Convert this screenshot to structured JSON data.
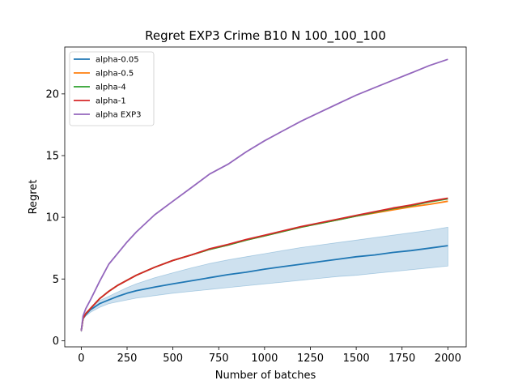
{
  "chart_data": {
    "type": "line",
    "title": "Regret EXP3 Crime B10 N 100_100_100",
    "xlabel": "Number of batches",
    "ylabel": "Regret",
    "xlim": [
      -90,
      2100
    ],
    "ylim": [
      -0.5,
      23.8
    ],
    "xticks": [
      0,
      250,
      500,
      750,
      1000,
      1250,
      1500,
      1750,
      2000
    ],
    "yticks": [
      0,
      5,
      10,
      15,
      20
    ],
    "grid": false,
    "legend_position": "top-left",
    "x": [
      0,
      10,
      25,
      50,
      100,
      150,
      200,
      250,
      300,
      400,
      500,
      600,
      700,
      800,
      900,
      1000,
      1100,
      1200,
      1300,
      1400,
      1500,
      1600,
      1700,
      1800,
      1900,
      2000
    ],
    "series": [
      {
        "name": "alpha-0.05",
        "color": "#1f77b4",
        "values": [
          0.8,
          1.8,
          2.1,
          2.5,
          3.0,
          3.3,
          3.6,
          3.85,
          4.05,
          4.35,
          4.6,
          4.85,
          5.1,
          5.35,
          5.55,
          5.8,
          6.0,
          6.2,
          6.4,
          6.6,
          6.8,
          6.95,
          7.15,
          7.3,
          7.5,
          7.7
        ],
        "band_low": [
          0.7,
          1.7,
          2.0,
          2.3,
          2.7,
          3.0,
          3.15,
          3.3,
          3.45,
          3.65,
          3.85,
          4.0,
          4.15,
          4.3,
          4.45,
          4.6,
          4.75,
          4.9,
          5.05,
          5.2,
          5.3,
          5.45,
          5.6,
          5.75,
          5.9,
          6.05
        ],
        "band_high": [
          0.9,
          1.9,
          2.2,
          2.65,
          3.25,
          3.6,
          3.95,
          4.3,
          4.6,
          5.1,
          5.5,
          5.9,
          6.25,
          6.55,
          6.8,
          7.05,
          7.3,
          7.55,
          7.75,
          7.95,
          8.15,
          8.35,
          8.55,
          8.75,
          8.95,
          9.2
        ]
      },
      {
        "name": "alpha-0.5",
        "color": "#ff7f0e",
        "values": [
          0.8,
          1.8,
          2.2,
          2.6,
          3.4,
          4.0,
          4.5,
          4.9,
          5.3,
          5.95,
          6.5,
          6.95,
          7.4,
          7.75,
          8.15,
          8.5,
          8.85,
          9.2,
          9.5,
          9.8,
          10.1,
          10.35,
          10.6,
          10.85,
          11.05,
          11.3
        ]
      },
      {
        "name": "alpha-4",
        "color": "#2ca02c",
        "values": [
          0.8,
          1.8,
          2.2,
          2.6,
          3.4,
          4.0,
          4.5,
          4.9,
          5.3,
          5.95,
          6.5,
          6.95,
          7.4,
          7.75,
          8.15,
          8.5,
          8.85,
          9.2,
          9.5,
          9.8,
          10.1,
          10.4,
          10.7,
          10.95,
          11.25,
          11.5
        ]
      },
      {
        "name": "alpha-1",
        "color": "#d62728",
        "values": [
          0.8,
          1.8,
          2.2,
          2.6,
          3.4,
          4.0,
          4.5,
          4.9,
          5.3,
          5.95,
          6.5,
          6.95,
          7.45,
          7.8,
          8.2,
          8.55,
          8.9,
          9.25,
          9.55,
          9.85,
          10.15,
          10.45,
          10.75,
          11.0,
          11.3,
          11.55
        ]
      },
      {
        "name": "alpha EXP3",
        "color": "#9467bd",
        "values": [
          0.8,
          2.0,
          2.6,
          3.3,
          4.8,
          6.2,
          7.1,
          8.0,
          8.8,
          10.2,
          11.3,
          12.4,
          13.5,
          14.3,
          15.3,
          16.2,
          17.0,
          17.8,
          18.5,
          19.2,
          19.9,
          20.5,
          21.1,
          21.7,
          22.3,
          22.8
        ]
      }
    ]
  }
}
